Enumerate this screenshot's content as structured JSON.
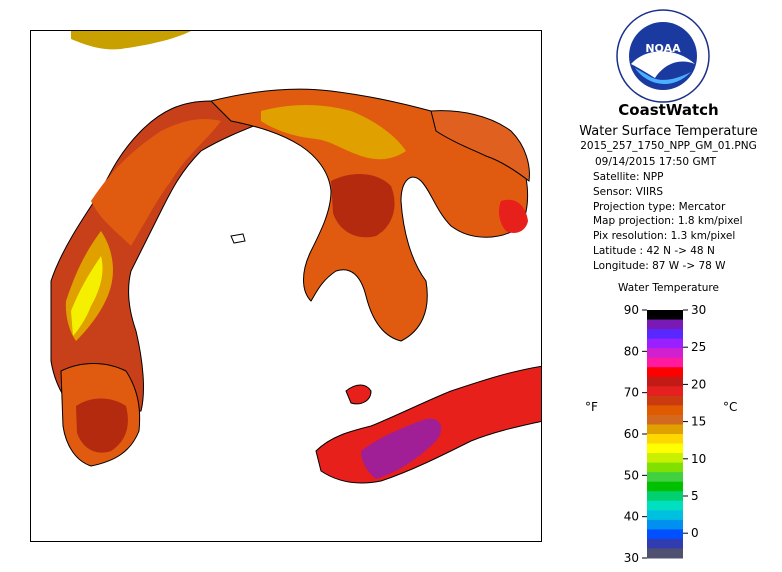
{
  "brand": "CoastWatch",
  "subtitle": "Water Surface Temperature",
  "filename": "2015_257_1750_NPP_GM_01.PNG",
  "datetime": "09/14/2015   17:50 GMT",
  "metadata": [
    {
      "label": "Satellite:",
      "value": "NPP"
    },
    {
      "label": "Sensor:",
      "value": "VIIRS"
    },
    {
      "label": "Projection type:",
      "value": "Mercator"
    },
    {
      "label": "Map projection:",
      "value": "1.8 km/pixel"
    },
    {
      "label": "Pix resolution:",
      "value": "1.3 km/pixel"
    },
    {
      "label": "Latitude :",
      "value": "42 N -> 48 N"
    },
    {
      "label": "Longitude:",
      "value": "87 W -> 78 W"
    }
  ],
  "legend": {
    "title": "Water Temperature",
    "unit_f": "°F",
    "unit_c": "°C",
    "f_ticks": [
      "90",
      "80",
      "70",
      "60",
      "50",
      "40",
      "30"
    ],
    "c_ticks": [
      "30",
      "25",
      "20",
      "15",
      "10",
      "5",
      "0"
    ],
    "colors": [
      "#000000",
      "#7a1ab6",
      "#5a28ff",
      "#9a20ff",
      "#d020d0",
      "#ff1aa0",
      "#ff0000",
      "#c21a14",
      "#e62020",
      "#cc3a10",
      "#e05a00",
      "#d2691e",
      "#e0a000",
      "#ffd700",
      "#ffff00",
      "#c8f000",
      "#80e000",
      "#40d040",
      "#00c000",
      "#00d070",
      "#00e0c0",
      "#00c0e0",
      "#0090f0",
      "#0050ff",
      "#303cb0",
      "#505070"
    ]
  },
  "logo": {
    "text": "NOAA",
    "ring_text": "NATIONAL OCEANIC AND ATMOSPHERIC ADMINISTRATION · U.S. DEPARTMENT OF COMMERCE"
  },
  "colors": {
    "hot_red": "#e8201c",
    "orange": "#e05a10",
    "dark_red": "#b42a0f",
    "amber": "#e0a000",
    "yellow": "#f5f000",
    "magenta": "#a01e96",
    "coast": "#000000"
  }
}
